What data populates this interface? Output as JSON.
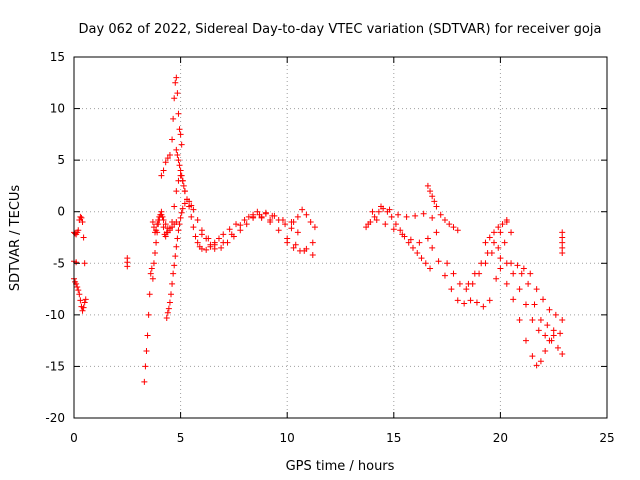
{
  "chart_data": {
    "type": "scatter",
    "title": "Day 062 of 2022, Sidereal Day-to-day VTEC variation (SDTVAR) for receiver goja",
    "xlabel": "GPS time / hours",
    "ylabel": "SDTVAR / TECUs",
    "xlim": [
      0,
      25
    ],
    "ylim": [
      -20,
      15
    ],
    "xticks": [
      0,
      5,
      10,
      15,
      20,
      25
    ],
    "yticks": [
      -20,
      -15,
      -10,
      -5,
      0,
      5,
      10,
      15
    ],
    "grid": true,
    "marker": "+",
    "color": "#ff0000",
    "series": [
      {
        "name": "seg-a1",
        "x": [
          0.0,
          0.05,
          0.1,
          0.15,
          0.2,
          0.25,
          0.3,
          0.35,
          0.4,
          0.45,
          0.5
        ],
        "y": [
          -2.0,
          -2.1,
          -2.2,
          -2.0,
          -1.8,
          -0.8,
          -0.5,
          -0.6,
          -1.0,
          -2.5,
          -5.0
        ]
      },
      {
        "name": "seg-a2",
        "x": [
          0.0,
          0.05,
          0.1,
          0.15,
          0.2,
          0.25,
          0.3,
          0.35,
          0.4,
          0.45,
          0.5,
          0.55
        ],
        "y": [
          -6.5,
          -6.8,
          -7.0,
          -7.3,
          -7.6,
          -8.0,
          -8.6,
          -9.2,
          -9.6,
          -9.3,
          -8.8,
          -8.5
        ]
      },
      {
        "name": "seg-a3",
        "x": [
          0.0,
          0.1
        ],
        "y": [
          -4.8,
          -4.9
        ]
      },
      {
        "name": "seg-b",
        "x": [
          2.5,
          2.5,
          2.5
        ],
        "y": [
          -4.5,
          -4.9,
          -5.3
        ]
      },
      {
        "name": "seg-c1",
        "x": [
          3.3,
          3.35,
          3.4,
          3.45,
          3.5,
          3.55,
          3.6,
          3.65,
          3.7,
          3.75,
          3.8,
          3.85,
          3.9,
          3.95,
          4.0,
          4.05,
          4.1,
          4.15,
          4.2,
          4.25,
          4.3,
          4.35
        ],
        "y": [
          -16.5,
          -15.0,
          -13.5,
          -12.0,
          -10.0,
          -8.0,
          -6.0,
          -5.5,
          -6.5,
          -5.0,
          -4.0,
          -3.0,
          -2.0,
          -1.2,
          -0.8,
          -0.3,
          0.0,
          -0.5,
          -1.5,
          -2.2,
          -2.4,
          -2.0
        ]
      },
      {
        "name": "seg-c2",
        "x": [
          3.7,
          3.75,
          3.8,
          3.85,
          3.9,
          3.95,
          4.0
        ],
        "y": [
          -1.0,
          -1.5,
          -2.0,
          -1.8,
          -1.2,
          -0.8,
          -0.5
        ]
      },
      {
        "name": "seg-d1",
        "x": [
          4.35,
          4.4,
          4.45,
          4.5,
          4.55,
          4.6,
          4.65,
          4.7,
          4.75,
          4.8,
          4.85,
          4.9,
          4.95,
          5.0,
          5.05,
          5.1,
          5.2,
          5.3,
          5.4,
          5.5,
          5.6,
          5.8,
          6.0,
          6.2,
          6.4,
          6.6
        ],
        "y": [
          -10.3,
          -9.8,
          -9.4,
          -8.8,
          -8.0,
          -7.0,
          -6.0,
          -5.2,
          -4.3,
          -3.4,
          -2.6,
          -1.8,
          -1.2,
          -0.6,
          -0.1,
          0.3,
          0.8,
          1.2,
          1.0,
          0.6,
          0.2,
          -0.8,
          -1.8,
          -2.6,
          -3.2,
          -3.6
        ]
      },
      {
        "name": "seg-d2",
        "x": [
          4.4,
          4.5,
          4.6,
          4.7,
          4.8,
          4.9,
          5.0,
          5.1,
          5.2,
          5.3,
          5.4,
          5.5,
          5.6,
          5.7,
          5.8,
          5.9,
          6.0,
          6.2,
          6.4,
          6.6,
          6.8,
          7.0,
          7.3,
          7.6,
          8.0,
          8.4,
          8.8,
          9.2
        ],
        "y": [
          -2.0,
          -1.6,
          -1.0,
          0.5,
          2.0,
          3.0,
          3.5,
          3.0,
          2.0,
          1.2,
          0.5,
          -0.5,
          -1.5,
          -2.4,
          -3.0,
          -3.4,
          -3.6,
          -3.7,
          -3.4,
          -3.0,
          -2.6,
          -2.2,
          -1.7,
          -1.2,
          -0.8,
          -0.5,
          -0.6,
          -0.8
        ]
      },
      {
        "name": "seg-d3",
        "x": [
          4.1,
          4.2,
          4.3,
          4.4,
          4.5,
          4.6,
          4.65,
          4.7,
          4.75,
          4.8,
          4.85,
          4.9,
          4.95,
          5.0,
          5.05
        ],
        "y": [
          3.5,
          4.0,
          4.8,
          5.2,
          5.5,
          7.0,
          9.0,
          11.0,
          12.5,
          13.0,
          11.5,
          9.5,
          8.0,
          7.5,
          6.5
        ]
      },
      {
        "name": "seg-d4",
        "x": [
          4.8,
          4.85,
          4.9,
          4.95,
          5.0,
          5.05,
          5.1,
          5.15,
          5.2
        ],
        "y": [
          6.0,
          5.5,
          5.0,
          4.5,
          4.0,
          3.5,
          3.0,
          2.5,
          2.0
        ]
      },
      {
        "name": "seg-d5",
        "x": [
          4.1,
          4.2,
          4.3,
          4.4,
          4.5,
          4.6,
          4.7,
          4.8
        ],
        "y": [
          -0.3,
          -0.8,
          -1.2,
          -1.6,
          -1.8,
          -1.5,
          -1.2,
          -1.0
        ]
      },
      {
        "name": "seg-e1",
        "x": [
          6.0,
          6.3,
          6.6,
          6.9,
          7.2,
          7.5,
          7.8,
          8.1,
          8.4,
          8.7,
          9.0,
          9.3,
          9.6,
          9.9,
          10.2,
          10.5
        ],
        "y": [
          -2.2,
          -2.6,
          -3.2,
          -3.5,
          -3.0,
          -2.4,
          -1.8,
          -1.2,
          -0.6,
          -0.3,
          -0.2,
          -0.4,
          -0.8,
          -1.2,
          -1.6,
          -2.0
        ]
      },
      {
        "name": "seg-e2",
        "x": [
          7.0,
          7.4,
          7.8,
          8.2,
          8.6,
          9.0,
          9.4,
          9.8,
          10.2
        ],
        "y": [
          -3.0,
          -2.2,
          -1.3,
          -0.5,
          0.0,
          -0.1,
          -0.4,
          -0.8,
          -1.0
        ]
      },
      {
        "name": "seg-e3",
        "x": [
          8.4,
          8.8,
          9.2,
          9.6,
          10.0,
          10.4,
          10.8,
          11.2
        ],
        "y": [
          -0.3,
          -0.5,
          -1.0,
          -1.8,
          -2.6,
          -3.2,
          -3.8,
          -4.2
        ]
      },
      {
        "name": "seg-e4",
        "x": [
          10.0,
          10.3,
          10.6,
          10.9,
          11.2
        ],
        "y": [
          -3.0,
          -3.5,
          -3.8,
          -3.6,
          -3.0
        ]
      },
      {
        "name": "seg-e5",
        "x": [
          10.3,
          10.5,
          10.7,
          10.9,
          11.1,
          11.3
        ],
        "y": [
          -1.0,
          -0.5,
          0.2,
          -0.3,
          -1.0,
          -1.5
        ]
      },
      {
        "name": "seg-f1",
        "x": [
          13.7,
          13.9,
          14.1,
          14.3,
          14.5,
          14.7,
          14.9,
          15.1,
          15.3,
          15.5,
          15.7,
          15.9,
          16.1,
          16.3,
          16.5,
          16.7
        ],
        "y": [
          -1.5,
          -1.0,
          -0.5,
          0.0,
          0.3,
          0.0,
          -0.5,
          -1.2,
          -1.8,
          -2.4,
          -3.0,
          -3.5,
          -4.0,
          -4.5,
          -5.0,
          -5.5
        ]
      },
      {
        "name": "seg-f2",
        "x": [
          13.8,
          14.2,
          14.6,
          15.0,
          15.4,
          15.8,
          16.2,
          16.6,
          17.0
        ],
        "y": [
          -1.2,
          -0.8,
          -1.2,
          -1.7,
          -2.2,
          -2.7,
          -3.0,
          -2.6,
          -2.0
        ]
      },
      {
        "name": "seg-f3",
        "x": [
          14.0,
          14.4,
          14.8,
          15.2,
          15.6,
          16.0,
          16.4,
          16.8
        ],
        "y": [
          0.0,
          0.5,
          0.2,
          -0.3,
          -0.5,
          -0.4,
          -0.2,
          -0.6
        ]
      },
      {
        "name": "seg-f4",
        "x": [
          16.6,
          16.7,
          16.8,
          16.9,
          17.0,
          17.2,
          17.4,
          17.6,
          17.8,
          18.0
        ],
        "y": [
          2.5,
          2.0,
          1.5,
          1.0,
          0.5,
          -0.3,
          -0.8,
          -1.2,
          -1.5,
          -1.8
        ]
      },
      {
        "name": "seg-g1",
        "x": [
          16.8,
          17.1,
          17.4,
          17.7,
          18.0,
          18.3,
          18.6,
          18.9,
          19.2,
          19.5,
          19.8,
          20.0
        ],
        "y": [
          -3.5,
          -4.8,
          -6.2,
          -7.5,
          -8.6,
          -8.9,
          -8.6,
          -8.8,
          -9.2,
          -8.6,
          -6.5,
          -4.5
        ]
      },
      {
        "name": "seg-g2",
        "x": [
          17.5,
          17.8,
          18.1,
          18.4,
          18.7,
          19.0,
          19.3,
          19.6,
          19.9,
          20.2
        ],
        "y": [
          -5.0,
          -6.0,
          -7.0,
          -7.5,
          -7.0,
          -6.0,
          -5.0,
          -4.0,
          -3.5,
          -3.0
        ]
      },
      {
        "name": "seg-g3",
        "x": [
          18.5,
          18.8,
          19.1,
          19.4,
          19.7,
          20.0,
          20.3
        ],
        "y": [
          -7.0,
          -6.0,
          -5.0,
          -4.0,
          -3.0,
          -2.0,
          -1.0
        ]
      },
      {
        "name": "seg-g4",
        "x": [
          19.3,
          19.5,
          19.7,
          19.9,
          20.1,
          20.3,
          20.5
        ],
        "y": [
          -3.0,
          -2.5,
          -2.0,
          -1.5,
          -1.2,
          -0.8,
          -2.0
        ]
      },
      {
        "name": "seg-h1",
        "x": [
          20.0,
          20.3,
          20.6,
          20.9,
          21.2,
          21.5,
          21.7,
          21.9,
          22.1,
          22.3,
          22.5
        ],
        "y": [
          -5.5,
          -7.0,
          -8.5,
          -10.5,
          -12.5,
          -14.0,
          -14.9,
          -14.5,
          -13.5,
          -12.5,
          -12.0
        ]
      },
      {
        "name": "seg-h2",
        "x": [
          20.3,
          20.6,
          20.9,
          21.2,
          21.5,
          21.8,
          22.1,
          22.4,
          22.7,
          22.9
        ],
        "y": [
          -5.0,
          -6.0,
          -7.5,
          -9.0,
          -10.5,
          -11.5,
          -12.0,
          -12.5,
          -13.2,
          -13.8
        ]
      },
      {
        "name": "seg-h3",
        "x": [
          20.5,
          20.8,
          21.1,
          21.4,
          21.7,
          22.0,
          22.3,
          22.6,
          22.9
        ],
        "y": [
          -5.0,
          -5.2,
          -5.5,
          -6.0,
          -7.5,
          -8.5,
          -9.5,
          -10.0,
          -10.5
        ]
      },
      {
        "name": "seg-h4",
        "x": [
          21.0,
          21.3,
          21.6,
          21.9,
          22.2,
          22.5,
          22.8
        ],
        "y": [
          -6.0,
          -7.0,
          -9.0,
          -10.5,
          -11.0,
          -11.5,
          -11.8
        ]
      },
      {
        "name": "seg-h5",
        "x": [
          22.9,
          22.9,
          22.9,
          22.9,
          22.9
        ],
        "y": [
          -2.0,
          -2.5,
          -3.0,
          -3.5,
          -4.0
        ]
      }
    ]
  }
}
